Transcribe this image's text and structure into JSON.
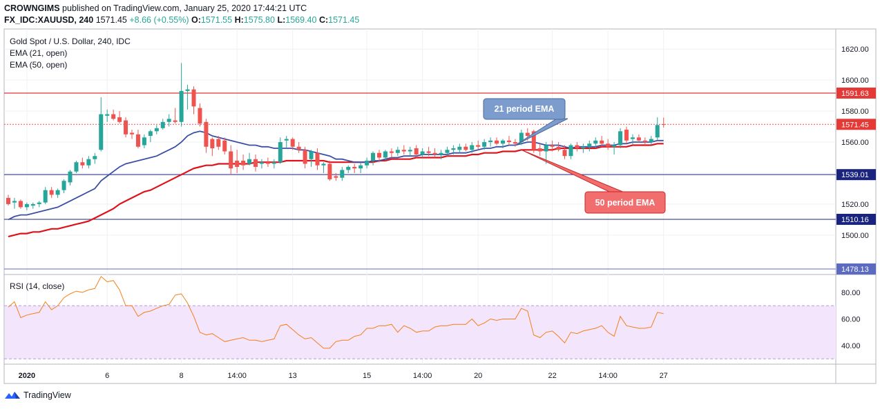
{
  "header": {
    "line1_user": "CROWNGIMS",
    "line1_rest": " published on TradingView.com, January 25, 2020 17:44:21 UTC",
    "symbol": "FX_IDC:XAUUSD, 240",
    "last": "1571.45",
    "change": "+8.66 (+0.55%)",
    "o_label": "O:",
    "o": "1571.55",
    "h_label": "H:",
    "h": "1575.80",
    "l_label": "L:",
    "l": "1569.40",
    "c_label": "C:",
    "c": "1571.45"
  },
  "legend": {
    "title": "Gold Spot / U.S. Dollar, 240, IDC",
    "ema21": "EMA (21, open)",
    "ema50": "EMA (50, open)",
    "rsi": "RSI (14, close)"
  },
  "annotations": {
    "ema21_callout": "21 period EMA",
    "ema50_callout": "50 period EMA"
  },
  "footer": {
    "brand": "TradingView"
  },
  "colors": {
    "bull": "#26a69a",
    "bear": "#ef5350",
    "ema21": "#3a4fa3",
    "ema50": "#e0101a",
    "rsi": "#f57f17",
    "rsi_band": "#f3e5fb",
    "res_line": "#d50000",
    "sup_line": "#1a237e",
    "callout_blue": "#7b9ccc",
    "callout_red": "#f26d6d"
  },
  "chart_data": [
    {
      "type": "candlestick",
      "title": "Gold Spot / U.S. Dollar, 240, IDC",
      "ylim": [
        1475,
        1633
      ],
      "y_ticks": [
        1500,
        1520,
        1540,
        1560,
        1580,
        1600,
        1620
      ],
      "y_tick_labels": [
        "1500.00",
        "1520.00",
        "1540.00",
        "1560.00",
        "1580.00",
        "1600.00",
        "1620.00"
      ],
      "x_ticks": [
        {
          "bar": 3,
          "label": "2020"
        },
        {
          "bar": 16,
          "label": "6"
        },
        {
          "bar": 28,
          "label": "8"
        },
        {
          "bar": 37,
          "label": "14:00"
        },
        {
          "bar": 46,
          "label": "13"
        },
        {
          "bar": 58,
          "label": "15"
        },
        {
          "bar": 67,
          "label": "14:00"
        },
        {
          "bar": 76,
          "label": "20"
        },
        {
          "bar": 88,
          "label": "22"
        },
        {
          "bar": 97,
          "label": "14:00"
        },
        {
          "bar": 106,
          "label": "27"
        }
      ],
      "horizontal_levels": [
        {
          "value": 1591.63,
          "label": "1591.63",
          "style": "resistance"
        },
        {
          "value": 1571.45,
          "label": "1571.45",
          "style": "current"
        },
        {
          "value": 1539.01,
          "label": "1539.01",
          "style": "support"
        },
        {
          "value": 1510.16,
          "label": "1510.16",
          "style": "support"
        },
        {
          "value": 1478.13,
          "label": "1478.13",
          "style": "level"
        }
      ],
      "candles": [
        {
          "o": 1524,
          "h": 1526,
          "l": 1519,
          "c": 1520
        },
        {
          "o": 1521,
          "h": 1524,
          "l": 1517,
          "c": 1522
        },
        {
          "o": 1522,
          "h": 1523,
          "l": 1517,
          "c": 1518
        },
        {
          "o": 1518,
          "h": 1521,
          "l": 1516,
          "c": 1520
        },
        {
          "o": 1519,
          "h": 1521,
          "l": 1517,
          "c": 1520
        },
        {
          "o": 1520,
          "h": 1522,
          "l": 1518,
          "c": 1521
        },
        {
          "o": 1521,
          "h": 1531,
          "l": 1520,
          "c": 1529
        },
        {
          "o": 1529,
          "h": 1531,
          "l": 1524,
          "c": 1526
        },
        {
          "o": 1526,
          "h": 1530,
          "l": 1524,
          "c": 1529
        },
        {
          "o": 1529,
          "h": 1536,
          "l": 1527,
          "c": 1535
        },
        {
          "o": 1534,
          "h": 1542,
          "l": 1532,
          "c": 1541
        },
        {
          "o": 1541,
          "h": 1548,
          "l": 1540,
          "c": 1547
        },
        {
          "o": 1547,
          "h": 1550,
          "l": 1543,
          "c": 1545
        },
        {
          "o": 1545,
          "h": 1551,
          "l": 1543,
          "c": 1549
        },
        {
          "o": 1549,
          "h": 1553,
          "l": 1546,
          "c": 1551
        },
        {
          "o": 1555,
          "h": 1589,
          "l": 1554,
          "c": 1578
        },
        {
          "o": 1577,
          "h": 1581,
          "l": 1573,
          "c": 1578
        },
        {
          "o": 1578,
          "h": 1581,
          "l": 1574,
          "c": 1575
        },
        {
          "o": 1576,
          "h": 1580,
          "l": 1572,
          "c": 1573
        },
        {
          "o": 1574,
          "h": 1576,
          "l": 1563,
          "c": 1565
        },
        {
          "o": 1566,
          "h": 1568,
          "l": 1562,
          "c": 1565
        },
        {
          "o": 1565,
          "h": 1568,
          "l": 1556,
          "c": 1557
        },
        {
          "o": 1558,
          "h": 1565,
          "l": 1556,
          "c": 1563
        },
        {
          "o": 1564,
          "h": 1568,
          "l": 1560,
          "c": 1567
        },
        {
          "o": 1567,
          "h": 1571,
          "l": 1565,
          "c": 1569
        },
        {
          "o": 1569,
          "h": 1575,
          "l": 1568,
          "c": 1573
        },
        {
          "o": 1573,
          "h": 1578,
          "l": 1570,
          "c": 1575
        },
        {
          "o": 1574,
          "h": 1582,
          "l": 1572,
          "c": 1573
        },
        {
          "o": 1573,
          "h": 1611,
          "l": 1570,
          "c": 1593
        },
        {
          "o": 1593,
          "h": 1597,
          "l": 1581,
          "c": 1594
        },
        {
          "o": 1594,
          "h": 1596,
          "l": 1578,
          "c": 1583
        },
        {
          "o": 1582,
          "h": 1585,
          "l": 1570,
          "c": 1572
        },
        {
          "o": 1573,
          "h": 1575,
          "l": 1553,
          "c": 1557
        },
        {
          "o": 1562,
          "h": 1563,
          "l": 1551,
          "c": 1556
        },
        {
          "o": 1562,
          "h": 1564,
          "l": 1555,
          "c": 1557
        },
        {
          "o": 1561,
          "h": 1563,
          "l": 1552,
          "c": 1554
        },
        {
          "o": 1554,
          "h": 1558,
          "l": 1539,
          "c": 1543
        },
        {
          "o": 1548,
          "h": 1555,
          "l": 1540,
          "c": 1544
        },
        {
          "o": 1548,
          "h": 1552,
          "l": 1542,
          "c": 1545
        },
        {
          "o": 1546,
          "h": 1553,
          "l": 1545,
          "c": 1549
        },
        {
          "o": 1549,
          "h": 1552,
          "l": 1541,
          "c": 1544
        },
        {
          "o": 1546,
          "h": 1549,
          "l": 1543,
          "c": 1547
        },
        {
          "o": 1547,
          "h": 1550,
          "l": 1544,
          "c": 1546
        },
        {
          "o": 1546,
          "h": 1549,
          "l": 1543,
          "c": 1547
        },
        {
          "o": 1547,
          "h": 1563,
          "l": 1546,
          "c": 1560
        },
        {
          "o": 1561,
          "h": 1564,
          "l": 1556,
          "c": 1562
        },
        {
          "o": 1562,
          "h": 1563,
          "l": 1555,
          "c": 1557
        },
        {
          "o": 1557,
          "h": 1560,
          "l": 1553,
          "c": 1555
        },
        {
          "o": 1555,
          "h": 1557,
          "l": 1543,
          "c": 1546
        },
        {
          "o": 1549,
          "h": 1555,
          "l": 1544,
          "c": 1554
        },
        {
          "o": 1553,
          "h": 1556,
          "l": 1542,
          "c": 1545
        },
        {
          "o": 1545,
          "h": 1547,
          "l": 1540,
          "c": 1546
        },
        {
          "o": 1546,
          "h": 1548,
          "l": 1535,
          "c": 1536
        },
        {
          "o": 1538,
          "h": 1540,
          "l": 1535,
          "c": 1537
        },
        {
          "o": 1537,
          "h": 1544,
          "l": 1535,
          "c": 1542
        },
        {
          "o": 1542,
          "h": 1545,
          "l": 1540,
          "c": 1544
        },
        {
          "o": 1544,
          "h": 1546,
          "l": 1540,
          "c": 1543
        },
        {
          "o": 1543,
          "h": 1547,
          "l": 1540,
          "c": 1545
        },
        {
          "o": 1545,
          "h": 1550,
          "l": 1543,
          "c": 1548
        },
        {
          "o": 1548,
          "h": 1554,
          "l": 1545,
          "c": 1553
        },
        {
          "o": 1553,
          "h": 1555,
          "l": 1547,
          "c": 1550
        },
        {
          "o": 1550,
          "h": 1555,
          "l": 1548,
          "c": 1554
        },
        {
          "o": 1554,
          "h": 1556,
          "l": 1550,
          "c": 1553
        },
        {
          "o": 1553,
          "h": 1557,
          "l": 1551,
          "c": 1555
        },
        {
          "o": 1555,
          "h": 1558,
          "l": 1552,
          "c": 1554
        },
        {
          "o": 1554,
          "h": 1557,
          "l": 1551,
          "c": 1555
        },
        {
          "o": 1556,
          "h": 1558,
          "l": 1550,
          "c": 1552
        },
        {
          "o": 1552,
          "h": 1556,
          "l": 1550,
          "c": 1554
        },
        {
          "o": 1554,
          "h": 1557,
          "l": 1551,
          "c": 1553
        },
        {
          "o": 1553,
          "h": 1556,
          "l": 1550,
          "c": 1552
        },
        {
          "o": 1552,
          "h": 1555,
          "l": 1549,
          "c": 1553
        },
        {
          "o": 1553,
          "h": 1557,
          "l": 1551,
          "c": 1555
        },
        {
          "o": 1555,
          "h": 1558,
          "l": 1552,
          "c": 1556
        },
        {
          "o": 1555,
          "h": 1559,
          "l": 1553,
          "c": 1557
        },
        {
          "o": 1557,
          "h": 1559,
          "l": 1554,
          "c": 1555
        },
        {
          "o": 1555,
          "h": 1560,
          "l": 1553,
          "c": 1558
        },
        {
          "o": 1558,
          "h": 1561,
          "l": 1555,
          "c": 1557
        },
        {
          "o": 1557,
          "h": 1562,
          "l": 1555,
          "c": 1560
        },
        {
          "o": 1560,
          "h": 1563,
          "l": 1557,
          "c": 1561
        },
        {
          "o": 1561,
          "h": 1563,
          "l": 1558,
          "c": 1559
        },
        {
          "o": 1559,
          "h": 1562,
          "l": 1556,
          "c": 1561
        },
        {
          "o": 1561,
          "h": 1564,
          "l": 1558,
          "c": 1560
        },
        {
          "o": 1560,
          "h": 1562,
          "l": 1557,
          "c": 1559
        },
        {
          "o": 1560,
          "h": 1568,
          "l": 1558,
          "c": 1566
        },
        {
          "o": 1566,
          "h": 1569,
          "l": 1561,
          "c": 1564
        },
        {
          "o": 1567,
          "h": 1568,
          "l": 1553,
          "c": 1555
        },
        {
          "o": 1556,
          "h": 1559,
          "l": 1551,
          "c": 1554
        },
        {
          "o": 1554,
          "h": 1560,
          "l": 1546,
          "c": 1558
        },
        {
          "o": 1558,
          "h": 1561,
          "l": 1554,
          "c": 1557
        },
        {
          "o": 1557,
          "h": 1560,
          "l": 1554,
          "c": 1555
        },
        {
          "o": 1555,
          "h": 1558,
          "l": 1549,
          "c": 1551
        },
        {
          "o": 1551,
          "h": 1559,
          "l": 1549,
          "c": 1558
        },
        {
          "o": 1558,
          "h": 1560,
          "l": 1554,
          "c": 1556
        },
        {
          "o": 1556,
          "h": 1559,
          "l": 1553,
          "c": 1557
        },
        {
          "o": 1557,
          "h": 1561,
          "l": 1554,
          "c": 1559
        },
        {
          "o": 1559,
          "h": 1563,
          "l": 1556,
          "c": 1561
        },
        {
          "o": 1561,
          "h": 1564,
          "l": 1557,
          "c": 1559
        },
        {
          "o": 1559,
          "h": 1562,
          "l": 1555,
          "c": 1557
        },
        {
          "o": 1557,
          "h": 1560,
          "l": 1552,
          "c": 1558
        },
        {
          "o": 1558,
          "h": 1569,
          "l": 1556,
          "c": 1567
        },
        {
          "o": 1568,
          "h": 1570,
          "l": 1559,
          "c": 1561
        },
        {
          "o": 1562,
          "h": 1565,
          "l": 1558,
          "c": 1563
        },
        {
          "o": 1563,
          "h": 1565,
          "l": 1560,
          "c": 1561
        },
        {
          "o": 1561,
          "h": 1563,
          "l": 1558,
          "c": 1560
        },
        {
          "o": 1560,
          "h": 1564,
          "l": 1558,
          "c": 1562
        },
        {
          "o": 1563,
          "h": 1576,
          "l": 1561,
          "c": 1571
        },
        {
          "o": 1571.55,
          "h": 1575.8,
          "l": 1569.4,
          "c": 1571.45
        }
      ],
      "ema21": [
        1510,
        1512,
        1513,
        1513,
        1514,
        1515,
        1516,
        1517,
        1518,
        1520,
        1522,
        1524,
        1526,
        1528,
        1530,
        1535,
        1538,
        1541,
        1544,
        1546,
        1547,
        1548,
        1549,
        1550,
        1551,
        1553,
        1555,
        1557,
        1560,
        1564,
        1566,
        1567,
        1566,
        1564,
        1563,
        1562,
        1561,
        1560,
        1559,
        1558,
        1558,
        1557,
        1557,
        1556,
        1556,
        1556,
        1556,
        1555,
        1555,
        1554,
        1553,
        1552,
        1551,
        1549,
        1549,
        1548,
        1547,
        1547,
        1547,
        1548,
        1548,
        1549,
        1550,
        1550,
        1551,
        1551,
        1551,
        1552,
        1552,
        1552,
        1552,
        1552,
        1553,
        1553,
        1553,
        1554,
        1555,
        1556,
        1556,
        1557,
        1557,
        1558,
        1558,
        1559,
        1560,
        1560,
        1559,
        1558,
        1558,
        1558,
        1557,
        1556,
        1557,
        1557,
        1557,
        1557,
        1558,
        1558,
        1558,
        1559,
        1559,
        1560,
        1560,
        1560,
        1560,
        1561,
        1561
      ],
      "ema50": [
        1499,
        1500,
        1501,
        1501,
        1502,
        1502,
        1503,
        1504,
        1504,
        1505,
        1506,
        1507,
        1508,
        1509,
        1511,
        1513,
        1515,
        1517,
        1520,
        1522,
        1524,
        1526,
        1528,
        1529,
        1531,
        1533,
        1535,
        1537,
        1539,
        1541,
        1543,
        1544,
        1545,
        1545,
        1546,
        1546,
        1546,
        1546,
        1546,
        1546,
        1547,
        1547,
        1547,
        1547,
        1547,
        1548,
        1548,
        1548,
        1548,
        1548,
        1548,
        1548,
        1547,
        1547,
        1547,
        1547,
        1547,
        1547,
        1547,
        1547,
        1548,
        1548,
        1549,
        1549,
        1549,
        1549,
        1550,
        1550,
        1550,
        1550,
        1550,
        1551,
        1551,
        1551,
        1551,
        1552,
        1552,
        1553,
        1553,
        1553,
        1554,
        1554,
        1554,
        1555,
        1555,
        1555,
        1555,
        1555,
        1555,
        1556,
        1556,
        1556,
        1556,
        1556,
        1556,
        1556,
        1557,
        1557,
        1557,
        1557,
        1557,
        1558,
        1558,
        1558,
        1558,
        1559,
        1559
      ]
    },
    {
      "type": "line",
      "title": "RSI (14, close)",
      "ylim": [
        26,
        93
      ],
      "y_ticks": [
        40,
        60,
        80
      ],
      "y_tick_labels": [
        "40.00",
        "60.00",
        "80.00"
      ],
      "band": [
        30,
        70
      ],
      "series": [
        {
          "values": [
            69,
            73,
            61,
            63,
            64,
            65,
            73,
            67,
            70,
            76,
            79,
            81,
            80,
            82,
            83,
            92,
            88,
            89,
            82,
            70,
            70,
            62,
            65,
            66,
            68,
            70,
            71,
            78,
            79,
            72,
            62,
            50,
            48,
            49,
            46,
            43,
            44,
            45,
            46,
            44,
            44,
            43,
            44,
            45,
            55,
            56,
            52,
            48,
            45,
            46,
            42,
            38,
            38,
            43,
            44,
            44,
            47,
            48,
            53,
            53,
            55,
            55,
            56,
            50,
            55,
            53,
            50,
            51,
            51,
            54,
            55,
            55,
            56,
            56,
            56,
            60,
            55,
            57,
            60,
            59,
            60,
            60,
            60,
            68,
            66,
            48,
            46,
            50,
            51,
            47,
            42,
            50,
            49,
            51,
            52,
            53,
            55,
            50,
            47,
            62,
            55,
            54,
            53,
            53,
            54,
            65,
            64
          ]
        }
      ]
    }
  ]
}
